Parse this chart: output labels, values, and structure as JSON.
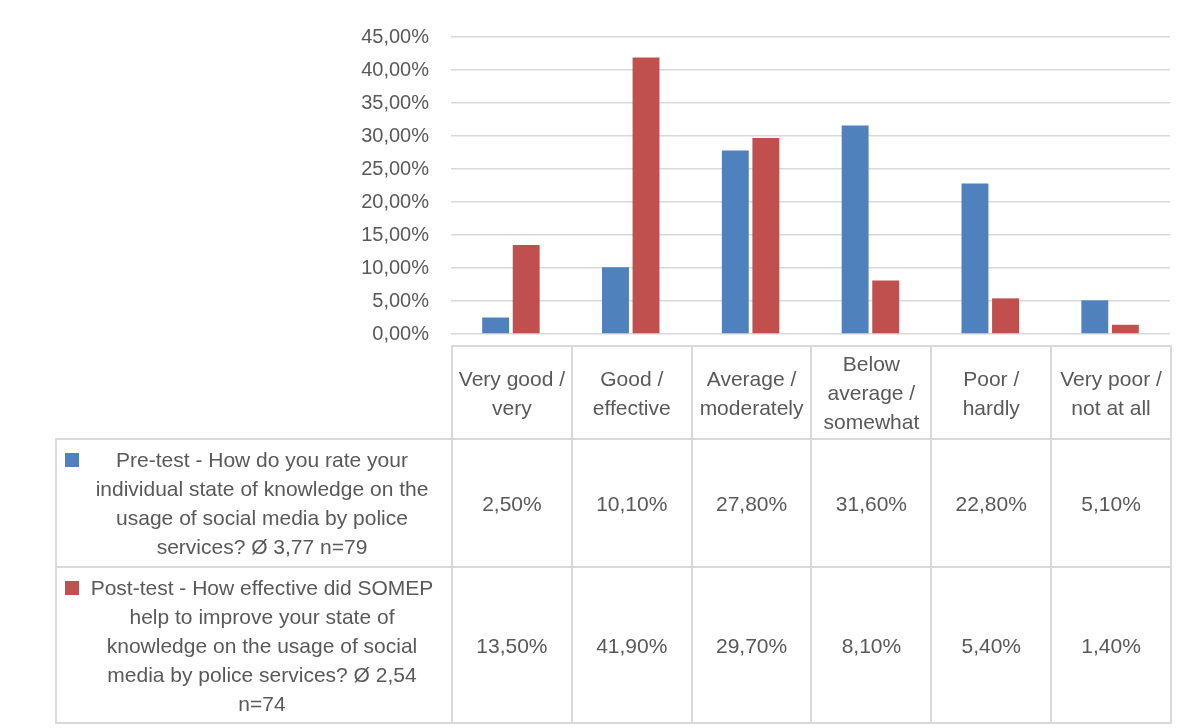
{
  "chart_data": {
    "type": "bar",
    "categories": [
      "Very good / very",
      "Good / effective",
      "Average / moderately",
      "Below average / somewhat",
      "Poor / hardly",
      "Very poor / not at all"
    ],
    "series": [
      {
        "name": "Pre-test - How do you rate your individual state of knowledge on the usage of social media by police services? Ø 3,77 n=79",
        "color": "#4f81bd",
        "values": [
          2.5,
          10.1,
          27.8,
          31.6,
          22.8,
          5.1
        ],
        "value_labels": [
          "2,50%",
          "10,10%",
          "27,80%",
          "31,60%",
          "22,80%",
          "5,10%"
        ]
      },
      {
        "name": "Post-test - How effective did SOMEP help to improve your state of knowledge on the usage of social media by police services? Ø 2,54 n=74",
        "color": "#c0504d",
        "values": [
          13.5,
          41.9,
          29.7,
          8.1,
          5.4,
          1.4
        ],
        "value_labels": [
          "13,50%",
          "41,90%",
          "29,70%",
          "8,10%",
          "5,40%",
          "1,40%"
        ]
      }
    ],
    "ylim": [
      0,
      45
    ],
    "yticks": [
      {
        "value": 0,
        "label": "0,00%"
      },
      {
        "value": 5,
        "label": "5,00%"
      },
      {
        "value": 10,
        "label": "10,00%"
      },
      {
        "value": 15,
        "label": "15,00%"
      },
      {
        "value": 20,
        "label": "20,00%"
      },
      {
        "value": 25,
        "label": "25,00%"
      },
      {
        "value": 30,
        "label": "30,00%"
      },
      {
        "value": 35,
        "label": "35,00%"
      },
      {
        "value": 40,
        "label": "40,00%"
      },
      {
        "value": 45,
        "label": "45,00%"
      }
    ],
    "grid": "y",
    "legend": "bottom"
  }
}
